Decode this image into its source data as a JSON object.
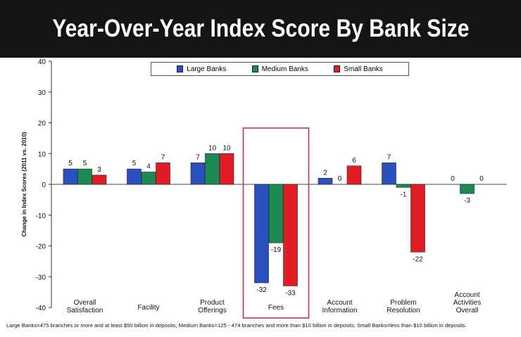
{
  "title": "Year-Over-Year Index Score By Bank Size",
  "footnote": "Large Banks=475 branches or more and at least $50 billion in deposits; Medium Banks=125 - 474 branches and more than $10 billion in deposits; Small Banks=less than $10 billion in deposits.",
  "legend": [
    {
      "label": "Large Banks",
      "color": "#2a4fbf"
    },
    {
      "label": "Medium Banks",
      "color": "#1b8a52"
    },
    {
      "label": "Small Banks",
      "color": "#e01c24"
    }
  ],
  "chart_data": {
    "type": "bar",
    "title": "Year-Over-Year Index Score By Bank Size",
    "ylabel": "Change in Index Scores (2011 vs. 2010)",
    "xlabel": "",
    "ylim": [
      -40,
      40
    ],
    "yticks": [
      40,
      30,
      20,
      10,
      0,
      -10,
      -20,
      -30,
      -40
    ],
    "grid": false,
    "legend_position": "top",
    "categories": [
      [
        "Overall",
        "Satisfaction"
      ],
      [
        "Facility"
      ],
      [
        "Product",
        "Offerings"
      ],
      [
        "Fees"
      ],
      [
        "Account",
        "Information"
      ],
      [
        "Problem",
        "Resolution"
      ],
      [
        "Account",
        "Activities",
        "Overall"
      ]
    ],
    "highlighted_category": "Fees",
    "series": [
      {
        "name": "Large Banks",
        "color": "#2a4fbf",
        "values": [
          5,
          5,
          7,
          -32,
          2,
          7,
          0
        ]
      },
      {
        "name": "Medium Banks",
        "color": "#1b8a52",
        "values": [
          5,
          4,
          10,
          -19,
          0,
          -1,
          -3
        ]
      },
      {
        "name": "Small Banks",
        "color": "#e01c24",
        "values": [
          3,
          7,
          10,
          -33,
          6,
          -22,
          0
        ]
      }
    ]
  }
}
